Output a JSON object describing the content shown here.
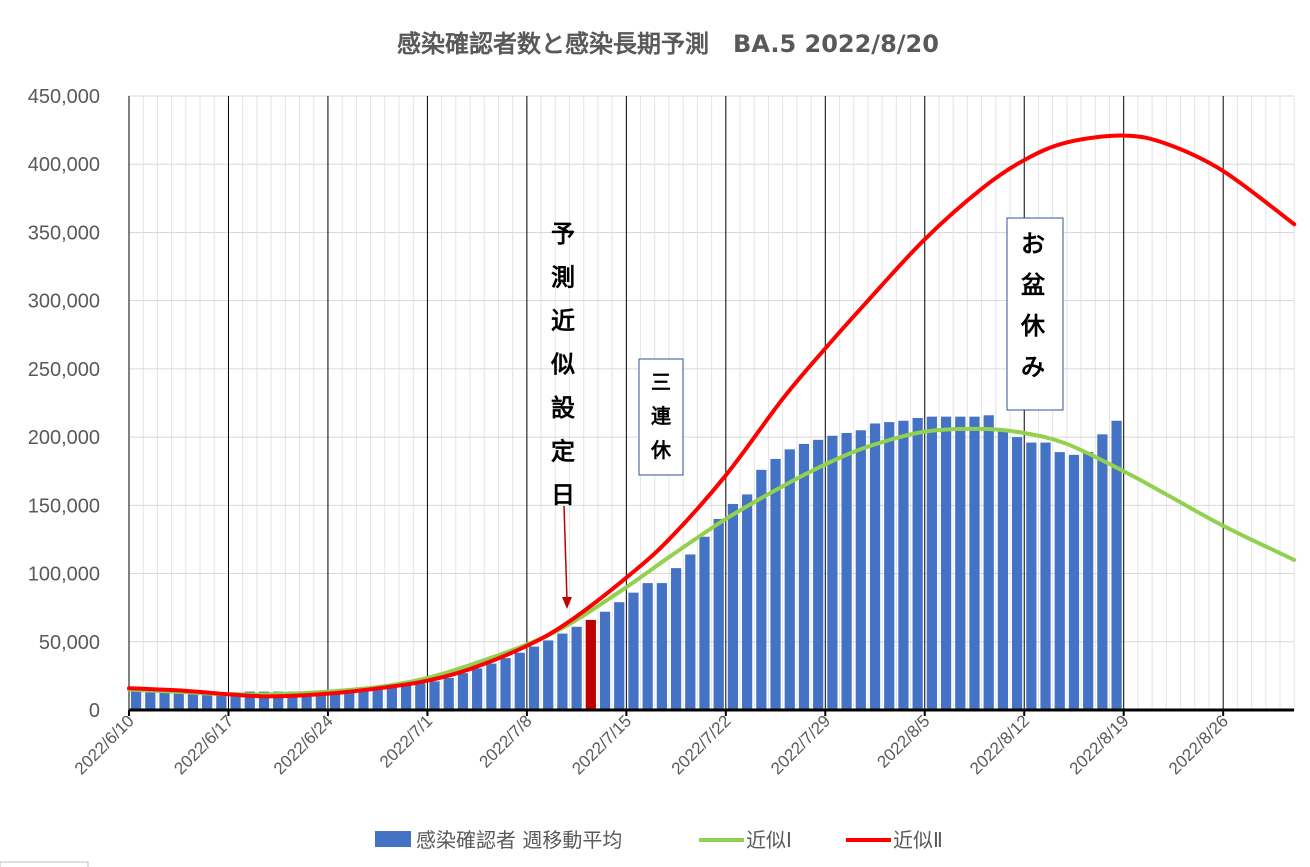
{
  "chart_data": {
    "type": "bar",
    "title": "感染確認者数と感染長期予測　BA.5  2022/8/20",
    "y_ticks": [
      "0",
      "50,000",
      "100,000",
      "150,000",
      "200,000",
      "250,000",
      "300,000",
      "350,000",
      "400,000",
      "450,000"
    ],
    "ylim": [
      0,
      450000
    ],
    "x_ticks": [
      "2022/6/10",
      "2022/6/17",
      "2022/6/24",
      "2022/7/1",
      "2022/7/8",
      "2022/7/15",
      "2022/7/22",
      "2022/7/29",
      "2022/8/5",
      "2022/8/12",
      "2022/8/19",
      "2022/8/26"
    ],
    "xlim": [
      "2022/6/10",
      "2022/8/31"
    ],
    "grid": true,
    "legend_position": "bottom",
    "highlight_bar": {
      "date": "2022/7/12",
      "value": 66000,
      "color": "#C00000"
    },
    "series": [
      {
        "name": "感染確認者 週移動平均",
        "type": "bar",
        "color": "#4472C4",
        "start_date": "2022/6/10",
        "values": [
          13500,
          13000,
          12500,
          12000,
          12000,
          12000,
          12500,
          13000,
          13500,
          13500,
          13500,
          13500,
          13500,
          14000,
          14500,
          15500,
          16000,
          16500,
          17000,
          18000,
          19500,
          21000,
          23500,
          27000,
          30500,
          34000,
          38000,
          42000,
          46500,
          51000,
          56000,
          61000,
          66000,
          72000,
          79000,
          86000,
          93000,
          93000,
          104000,
          114000,
          127000,
          140000,
          151000,
          158000,
          176000,
          184000,
          191000,
          195000,
          198000,
          201000,
          203000,
          205000,
          210000,
          211000,
          212000,
          214000,
          215000,
          215000,
          215000,
          215000,
          216000,
          204000,
          200000,
          196000,
          196000,
          189000,
          187000,
          189000,
          202000,
          212000
        ]
      },
      {
        "name": "近似Ⅰ",
        "type": "line",
        "color": "#92D050",
        "x": [
          "2022/6/10",
          "2022/6/14",
          "2022/6/17",
          "2022/6/20",
          "2022/6/24",
          "2022/6/28",
          "2022/7/1",
          "2022/7/4",
          "2022/7/8",
          "2022/7/11",
          "2022/7/15",
          "2022/7/18",
          "2022/7/22",
          "2022/7/26",
          "2022/7/29",
          "2022/8/1",
          "2022/8/5",
          "2022/8/9",
          "2022/8/12",
          "2022/8/15",
          "2022/8/19",
          "2022/8/22",
          "2022/8/26",
          "2022/8/31"
        ],
        "values": [
          15000,
          13000,
          11500,
          11500,
          13500,
          17500,
          23500,
          33000,
          48000,
          63000,
          90000,
          112000,
          140000,
          164000,
          180000,
          193000,
          204000,
          206000,
          203000,
          195000,
          175000,
          158000,
          135000,
          110000
        ]
      },
      {
        "name": "近似Ⅱ",
        "type": "line",
        "color": "#FF0000",
        "x": [
          "2022/6/10",
          "2022/6/14",
          "2022/6/17",
          "2022/6/20",
          "2022/6/24",
          "2022/6/28",
          "2022/7/1",
          "2022/7/4",
          "2022/7/8",
          "2022/7/11",
          "2022/7/15",
          "2022/7/18",
          "2022/7/22",
          "2022/7/26",
          "2022/7/29",
          "2022/8/1",
          "2022/8/5",
          "2022/8/9",
          "2022/8/12",
          "2022/8/15",
          "2022/8/19",
          "2022/8/22",
          "2022/8/26",
          "2022/8/31"
        ],
        "values": [
          16000,
          14000,
          11500,
          10000,
          12000,
          16500,
          21500,
          30000,
          47000,
          65000,
          97000,
          125000,
          172000,
          228000,
          265000,
          300000,
          345000,
          382000,
          403000,
          416000,
          421000,
          415000,
          395000,
          356000
        ]
      }
    ],
    "annotations": {
      "forecast_day": "予測近似設定日",
      "three_day_holiday": "三連休",
      "obon_holiday": "お盆休み"
    }
  },
  "corner_marker_text": ""
}
